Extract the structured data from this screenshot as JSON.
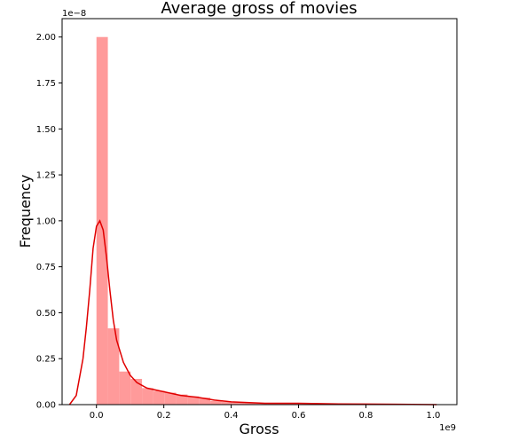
{
  "chart_data": {
    "type": "bar",
    "title": "Average gross of movies",
    "xlabel": "Gross",
    "ylabel": "Frequency",
    "x_offset_label": "1e9",
    "y_offset_label": "1e−8",
    "xlim": [
      -0.102,
      1.07
    ],
    "ylim": [
      0,
      2.1
    ],
    "grid": false,
    "x_ticks": [
      0.0,
      0.2,
      0.4,
      0.6,
      0.8,
      1.0
    ],
    "x_tick_labels": [
      "0.0",
      "0.2",
      "0.4",
      "0.6",
      "0.8",
      "1.0"
    ],
    "y_ticks": [
      0.0,
      0.25,
      0.5,
      0.75,
      1.0,
      1.25,
      1.5,
      1.75,
      2.0
    ],
    "y_tick_labels": [
      "0.00",
      "0.25",
      "0.50",
      "0.75",
      "1.00",
      "1.25",
      "1.50",
      "1.75",
      "2.00"
    ],
    "bin_width": 0.0338,
    "bins": [
      {
        "start": 0.0,
        "value": 2.0
      },
      {
        "start": 0.0338,
        "value": 0.415
      },
      {
        "start": 0.0676,
        "value": 0.18
      },
      {
        "start": 0.1014,
        "value": 0.14
      },
      {
        "start": 0.1352,
        "value": 0.09
      },
      {
        "start": 0.169,
        "value": 0.075
      },
      {
        "start": 0.2028,
        "value": 0.065
      },
      {
        "start": 0.2366,
        "value": 0.055
      },
      {
        "start": 0.2704,
        "value": 0.045
      },
      {
        "start": 0.3042,
        "value": 0.038
      },
      {
        "start": 0.338,
        "value": 0.02
      },
      {
        "start": 0.3718,
        "value": 0.016
      },
      {
        "start": 0.4056,
        "value": 0.014
      },
      {
        "start": 0.4394,
        "value": 0.01
      },
      {
        "start": 0.4732,
        "value": 0.008
      },
      {
        "start": 0.507,
        "value": 0.007
      },
      {
        "start": 0.5408,
        "value": 0.006
      },
      {
        "start": 0.5746,
        "value": 0.005
      },
      {
        "start": 0.6084,
        "value": 0.005
      },
      {
        "start": 0.6422,
        "value": 0.004
      },
      {
        "start": 0.676,
        "value": 0.003
      },
      {
        "start": 0.7098,
        "value": 0.003
      },
      {
        "start": 0.7436,
        "value": 0.002
      },
      {
        "start": 0.7774,
        "value": 0.002
      },
      {
        "start": 0.8112,
        "value": 0.002
      },
      {
        "start": 0.845,
        "value": 0.002
      },
      {
        "start": 0.8788,
        "value": 0.001
      },
      {
        "start": 0.9126,
        "value": 0.001
      },
      {
        "start": 0.9464,
        "value": 0.001
      },
      {
        "start": 0.9802,
        "value": 0.001
      }
    ],
    "kde": {
      "x": [
        -0.08,
        -0.06,
        -0.04,
        -0.03,
        -0.02,
        -0.01,
        0.0,
        0.01,
        0.02,
        0.03,
        0.04,
        0.05,
        0.06,
        0.08,
        0.1,
        0.12,
        0.15,
        0.2,
        0.25,
        0.3,
        0.35,
        0.4,
        0.5,
        0.6,
        0.7,
        0.8,
        0.9,
        1.01
      ],
      "y": [
        0.0,
        0.05,
        0.25,
        0.42,
        0.62,
        0.85,
        0.97,
        1.0,
        0.95,
        0.8,
        0.62,
        0.46,
        0.35,
        0.23,
        0.16,
        0.12,
        0.09,
        0.07,
        0.05,
        0.04,
        0.025,
        0.015,
        0.007,
        0.007,
        0.004,
        0.003,
        0.002,
        0.0
      ]
    },
    "bar_color": "#ff9a9a",
    "line_color": "#e00000"
  }
}
